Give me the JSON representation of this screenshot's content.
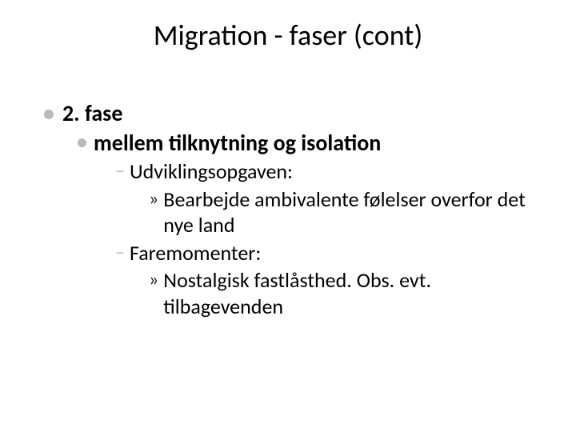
{
  "slide": {
    "title": "Migration - faser (cont)",
    "bullets": {
      "lvl1_text": "2. fase",
      "lvl2_text": "mellem tilknytning og isolation",
      "lvl3a_text": "Udviklingsopgaven:",
      "lvl4a_text": "Bearbejde ambivalente følelser overfor det nye land",
      "lvl3b_text": "Faremomenter:",
      "lvl4b_text": "Nostalgisk fastlåsthed. Obs. evt. tilbagevenden"
    },
    "glyphs": {
      "dot": "•",
      "dash": "–",
      "raquo": "»"
    },
    "colors": {
      "text": "#000000",
      "bullet_muted": "#b9b9b9",
      "bullet_dark": "#1a1a1a",
      "background": "#ffffff"
    },
    "fontsizes": {
      "title": 36,
      "lvl1": 28,
      "lvl2": 28,
      "lvl3": 26,
      "lvl4": 26
    }
  }
}
